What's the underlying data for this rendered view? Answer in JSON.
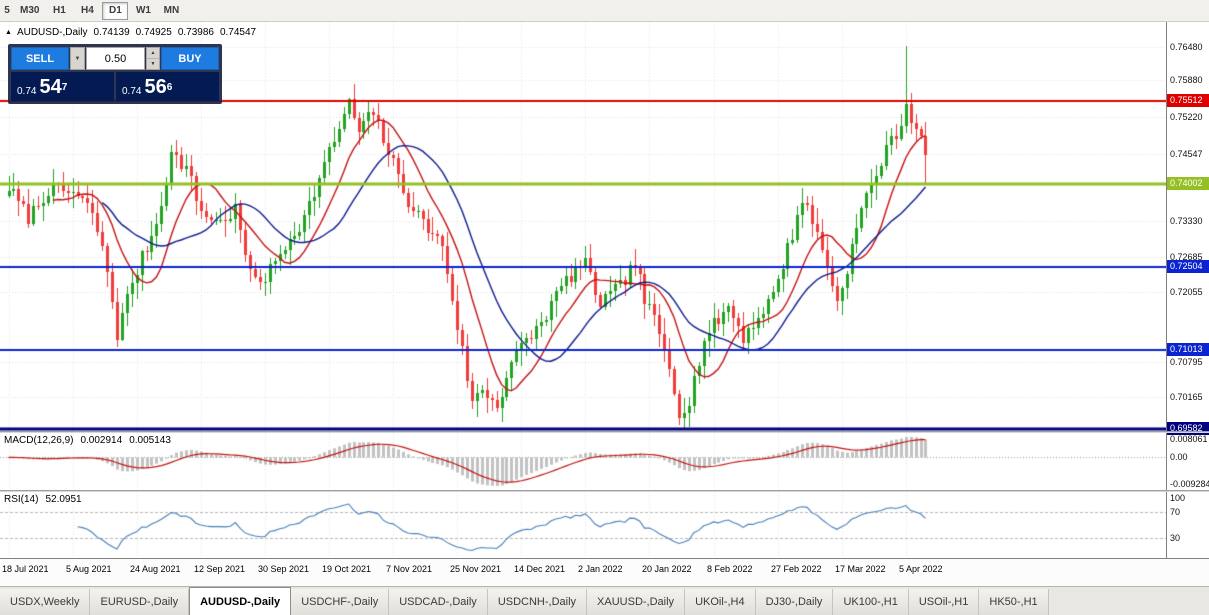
{
  "toolbar": {
    "timeframes": [
      {
        "label": "5",
        "active": false,
        "partial": true
      },
      {
        "label": "M30",
        "active": false
      },
      {
        "label": "H1",
        "active": false
      },
      {
        "label": "H4",
        "active": false
      },
      {
        "label": "D1",
        "active": true
      },
      {
        "label": "W1",
        "active": false
      },
      {
        "label": "MN",
        "active": false
      }
    ]
  },
  "chart": {
    "header": {
      "collapse_icon": "▲",
      "symbol": "AUDUSD-,Daily",
      "open": "0.74139",
      "high": "0.74925",
      "low": "0.73986",
      "close": "0.74547"
    },
    "trade_panel": {
      "sell_label": "SELL",
      "buy_label": "BUY",
      "volume": "0.50",
      "dropdown_icon": "▼",
      "spin_up_icon": "▲",
      "spin_down_icon": "▼",
      "sell_price": {
        "prefix": "0.74",
        "big": "54",
        "sup": "7"
      },
      "buy_price": {
        "prefix": "0.74",
        "big": "56",
        "sup": "6"
      }
    },
    "price_scale": {
      "ticks": [
        "0.76480",
        "0.75880",
        "0.75220",
        "0.74547",
        "0.73330",
        "0.72685",
        "0.72055",
        "0.70795",
        "0.70165"
      ],
      "badges": [
        {
          "value": "0.75512",
          "color": "#dd0000"
        },
        {
          "value": "0.74002",
          "color": "#94c024"
        },
        {
          "value": "0.72504",
          "color": "#0b24cf"
        },
        {
          "value": "0.71013",
          "color": "#0b24cf"
        },
        {
          "value": "0.69582",
          "color": "#000080"
        }
      ]
    },
    "levels": [
      {
        "price": 0.75512,
        "color": "#dd0000",
        "width": 2
      },
      {
        "price": 0.74002,
        "color": "#94c024",
        "width": 3
      },
      {
        "price": 0.72504,
        "color": "#0b24cf",
        "width": 2
      },
      {
        "price": 0.71013,
        "color": "#0b24cf",
        "width": 2
      },
      {
        "price": 0.69582,
        "color": "#000080",
        "width": 3
      }
    ],
    "time_axis": [
      "18 Jul 2021",
      "5 Aug 2021",
      "24 Aug 2021",
      "12 Sep 2021",
      "30 Sep 2021",
      "19 Oct 2021",
      "7 Nov 2021",
      "25 Nov 2021",
      "14 Dec 2021",
      "2 Jan 2022",
      "20 Jan 2022",
      "8 Feb 2022",
      "27 Feb 2022",
      "17 Mar 2022",
      "5 Apr 2022"
    ]
  },
  "chart_data": {
    "type": "candlestick",
    "title": "AUDUSD-,Daily",
    "ohlc_header": {
      "open": 0.74139,
      "high": 0.74925,
      "low": 0.73986,
      "close": 0.74547
    },
    "price_range": {
      "top": 0.7648,
      "bottom": 0.69582
    },
    "grid": true,
    "bars_per_label": 13,
    "candles": {
      "count": 187,
      "seed": 7,
      "noise": 0.0013,
      "wick": 0.0026,
      "anchors": [
        [
          0,
          0.7395
        ],
        [
          4,
          0.734
        ],
        [
          8,
          0.739
        ],
        [
          13,
          0.7385
        ],
        [
          17,
          0.735
        ],
        [
          20,
          0.7245
        ],
        [
          22,
          0.713
        ],
        [
          25,
          0.7225
        ],
        [
          26,
          0.7245
        ],
        [
          30,
          0.733
        ],
        [
          33,
          0.7455
        ],
        [
          36,
          0.743
        ],
        [
          39,
          0.735
        ],
        [
          43,
          0.733
        ],
        [
          46,
          0.7355
        ],
        [
          49,
          0.7235
        ],
        [
          52,
          0.723
        ],
        [
          56,
          0.729
        ],
        [
          60,
          0.734
        ],
        [
          63,
          0.741
        ],
        [
          66,
          0.748
        ],
        [
          69,
          0.7545
        ],
        [
          71,
          0.7495
        ],
        [
          74,
          0.753
        ],
        [
          78,
          0.7435
        ],
        [
          81,
          0.737
        ],
        [
          84,
          0.733
        ],
        [
          88,
          0.729
        ],
        [
          91,
          0.7145
        ],
        [
          94,
          0.7005
        ],
        [
          96,
          0.703
        ],
        [
          99,
          0.7
        ],
        [
          102,
          0.708
        ],
        [
          104,
          0.7105
        ],
        [
          108,
          0.715
        ],
        [
          112,
          0.7215
        ],
        [
          115,
          0.7245
        ],
        [
          117,
          0.7255
        ],
        [
          120,
          0.7185
        ],
        [
          124,
          0.7215
        ],
        [
          127,
          0.726
        ],
        [
          129,
          0.719
        ],
        [
          131,
          0.7155
        ],
        [
          134,
          0.707
        ],
        [
          136,
          0.699
        ],
        [
          138,
          0.701
        ],
        [
          141,
          0.712
        ],
        [
          143,
          0.7145
        ],
        [
          146,
          0.718
        ],
        [
          149,
          0.7125
        ],
        [
          152,
          0.716
        ],
        [
          155,
          0.72
        ],
        [
          156,
          0.723
        ],
        [
          159,
          0.731
        ],
        [
          161,
          0.7375
        ],
        [
          164,
          0.731
        ],
        [
          166,
          0.7255
        ],
        [
          168,
          0.7185
        ],
        [
          170,
          0.725
        ],
        [
          173,
          0.7355
        ],
        [
          176,
          0.742
        ],
        [
          179,
          0.748
        ],
        [
          181,
          0.751
        ],
        [
          182,
          0.7545
        ],
        [
          184,
          0.75
        ],
        [
          186,
          0.7455
        ]
      ],
      "spikes": [
        {
          "i": 22,
          "low": 0.7106
        },
        {
          "i": 69,
          "high": 0.7556
        },
        {
          "i": 94,
          "low": 0.6995
        },
        {
          "i": 136,
          "low": 0.6966
        },
        {
          "i": 182,
          "high": 0.765
        },
        {
          "i": 186,
          "low": 0.7399
        }
      ]
    },
    "moving_averages": [
      {
        "period": 10,
        "color": "#c41414"
      },
      {
        "period": 20,
        "color": "#101c8f"
      }
    ],
    "indicators": {
      "macd": {
        "label": "MACD(12,26,9)",
        "values": [
          "0.002914",
          "0.005143"
        ],
        "params": [
          12,
          26,
          9
        ],
        "scale": [
          "0.008061",
          "0.00",
          "-0.009284"
        ],
        "hist_color": "#c2c2c2",
        "signal_color": "#c41414"
      },
      "rsi": {
        "label": "RSI(14)",
        "value": "52.0951",
        "period": 14,
        "scale": [
          "100",
          "70",
          "30"
        ],
        "levels": [
          70,
          30
        ],
        "color": "#4a80b8"
      }
    }
  },
  "colors": {
    "bull": "#23a223",
    "bear": "#f23b3b",
    "grid": "#e1e1e1",
    "vgrid": "#e7e7e7",
    "zero_line": "#9c9c9c"
  },
  "tabs": {
    "items": [
      {
        "label": "USDX,Weekly",
        "active": false
      },
      {
        "label": "EURUSD-,Daily",
        "active": false
      },
      {
        "label": "AUDUSD-,Daily",
        "active": true
      },
      {
        "label": "USDCHF-,Daily",
        "active": false
      },
      {
        "label": "USDCAD-,Daily",
        "active": false
      },
      {
        "label": "USDCNH-,Daily",
        "active": false
      },
      {
        "label": "XAUUSD-,Daily",
        "active": false
      },
      {
        "label": "UKOil-,H4",
        "active": false
      },
      {
        "label": "DJ30-,Daily",
        "active": false
      },
      {
        "label": "UK100-,H1",
        "active": false
      },
      {
        "label": "USOil-,H1",
        "active": false
      },
      {
        "label": "HK50-,H1",
        "active": false
      }
    ]
  }
}
